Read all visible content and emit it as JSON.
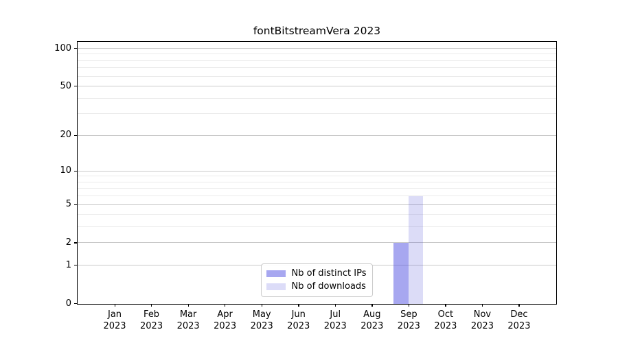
{
  "chart_data": {
    "type": "bar",
    "title": "fontBitstreamVera 2023",
    "categories": [
      "Jan",
      "Feb",
      "Mar",
      "Apr",
      "May",
      "Jun",
      "Jul",
      "Aug",
      "Sep",
      "Oct",
      "Nov",
      "Dec"
    ],
    "category_year": "2023",
    "series": [
      {
        "name": "Nb of distinct IPs",
        "color": "#a7a7f0",
        "fill": "rgba(79,79,225,0.5)",
        "values": [
          0,
          0,
          0,
          0,
          0,
          0,
          0,
          0,
          2,
          0,
          0,
          0
        ]
      },
      {
        "name": "Nb of downloads",
        "color": "#dcdcf8",
        "fill": "rgba(80,80,215,0.2)",
        "values": [
          0,
          0,
          0,
          0,
          0,
          0,
          0,
          0,
          6,
          0,
          0,
          0
        ]
      }
    ],
    "scale": "log1p",
    "ylim": [
      0,
      112
    ],
    "y_major_ticks": [
      0,
      1,
      2,
      5,
      10,
      20,
      50,
      100
    ],
    "y_minor_ticks": [
      3,
      4,
      6,
      7,
      8,
      9,
      30,
      40,
      60,
      70,
      80,
      90
    ],
    "grid": "horizontal",
    "legend_position": "lower center",
    "colors": {
      "major_grid": "#c9c9c9",
      "minor_grid": "#ebebeb",
      "spine": "#000000",
      "background": "#ffffff"
    }
  }
}
